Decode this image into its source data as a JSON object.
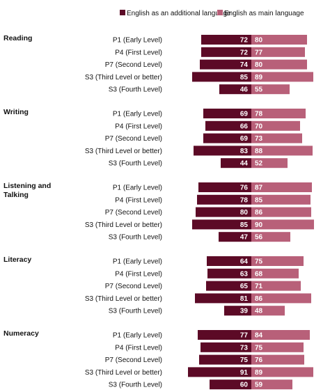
{
  "chart_data": {
    "type": "bar",
    "orientation": "horizontal-diverging",
    "legend_position": "top-right",
    "series": [
      {
        "name": "English as an additional language",
        "color": "#5c0a26"
      },
      {
        "name": "English as main language",
        "color": "#b86079"
      }
    ],
    "categories": [
      "P1 (Early Level)",
      "P4 (First Level)",
      "P7 (Second Level)",
      "S3 (Third Level or better)",
      "S3 (Fourth Level)"
    ],
    "groups": [
      {
        "name": "Reading",
        "eal": [
          72,
          72,
          74,
          85,
          46
        ],
        "main": [
          80,
          77,
          80,
          89,
          55
        ]
      },
      {
        "name": "Writing",
        "eal": [
          69,
          66,
          69,
          83,
          44
        ],
        "main": [
          78,
          70,
          73,
          88,
          52
        ]
      },
      {
        "name": "Listening and Talking",
        "eal": [
          76,
          78,
          80,
          85,
          47
        ],
        "main": [
          87,
          85,
          86,
          90,
          56
        ]
      },
      {
        "name": "Literacy",
        "eal": [
          64,
          63,
          65,
          81,
          39
        ],
        "main": [
          75,
          68,
          71,
          86,
          48
        ]
      },
      {
        "name": "Numeracy",
        "eal": [
          77,
          73,
          75,
          91,
          60
        ],
        "main": [
          84,
          75,
          76,
          89,
          59
        ]
      }
    ]
  }
}
